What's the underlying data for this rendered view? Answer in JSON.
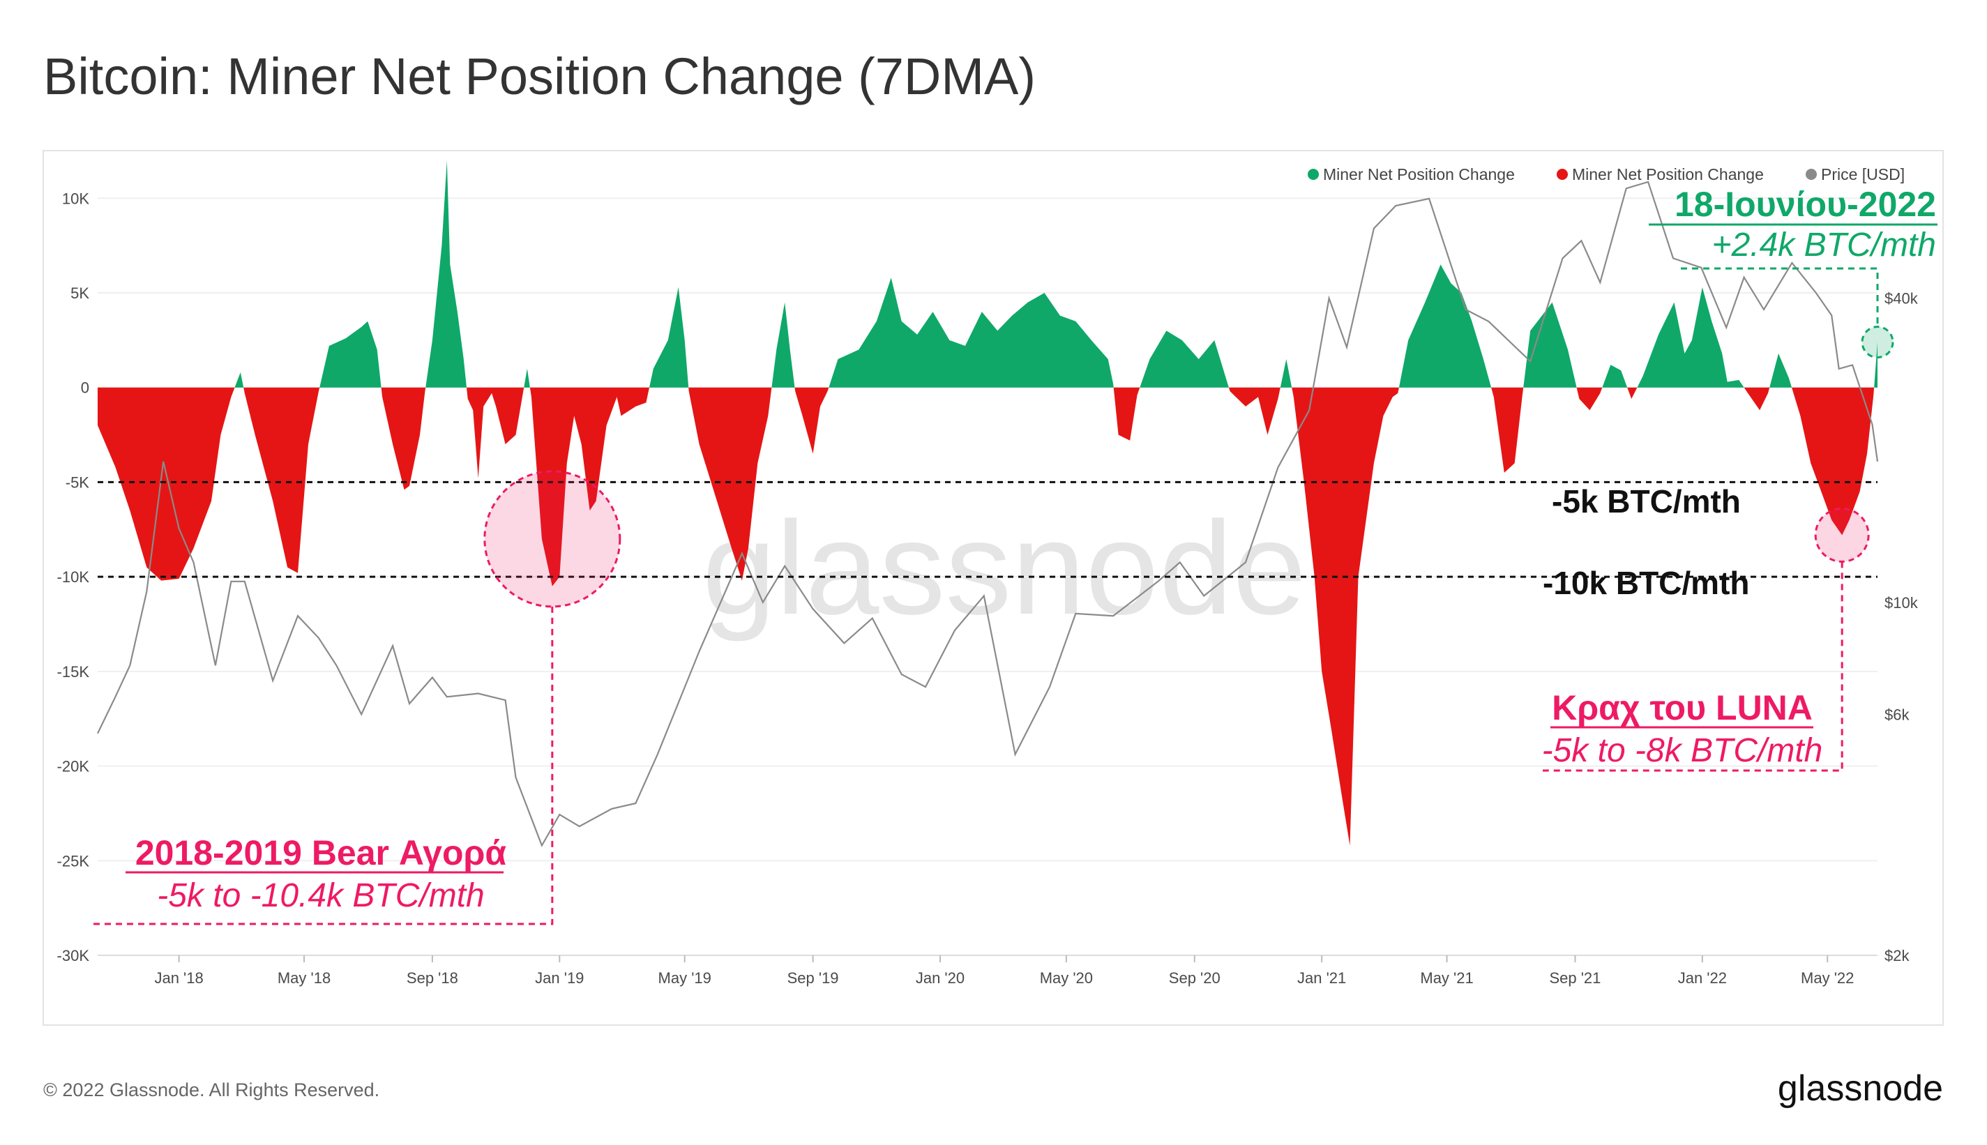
{
  "page": {
    "title": "Bitcoin: Miner Net Position Change (7DMA)"
  },
  "footer": {
    "copyright": "© 2022 Glassnode. All Rights Reserved.",
    "brand": "glassnode"
  },
  "watermark": "glassnode",
  "legend": [
    {
      "label": "Miner Net Position Change",
      "color": "#0fa869"
    },
    {
      "label": "Miner Net Position Change",
      "color": "#e51515"
    },
    {
      "label": "Price [USD]",
      "color": "#8a8a8a"
    }
  ],
  "annotations": {
    "peak_date": "18-Ιουνίου-2022",
    "peak_value": "+2.4k BTC/mth",
    "line_5k": "-5k BTC/mth",
    "line_10k": "-10k BTC/mth",
    "luna_title": "Κραχ του LUNA",
    "luna_range": "-5k to -8k BTC/mth",
    "bear_title": "2018-2019 Bear Αγορά",
    "bear_range": "-5k to -10.4k BTC/mth"
  },
  "colors": {
    "green": "#0fa869",
    "red": "#e51515",
    "pink": "#ee1a64",
    "price": "#8a8a8a"
  },
  "chart_data": {
    "type": "area",
    "title": "Bitcoin: Miner Net Position Change (7DMA)",
    "y_left": {
      "ylim": [
        -30000,
        12000
      ],
      "ticks": [
        10000,
        5000,
        0,
        -5000,
        -10000,
        -15000,
        -20000,
        -25000,
        -30000
      ],
      "tick_labels": [
        "10K",
        "5K",
        "0",
        "-5K",
        "-10K",
        "-15K",
        "-20K",
        "-25K",
        "-30K"
      ]
    },
    "y_right": {
      "scale": "log",
      "ticks": [
        40000,
        10000,
        6000,
        2000
      ],
      "tick_labels": [
        "$40k",
        "$10k",
        "$6k",
        "$2k"
      ]
    },
    "x_range": [
      "2017-10-15",
      "2022-06-18"
    ],
    "x_ticks": [
      {
        "date": "2018-01-01",
        "label": "Jan '18"
      },
      {
        "date": "2018-05-01",
        "label": "May '18"
      },
      {
        "date": "2018-09-01",
        "label": "Sep '18"
      },
      {
        "date": "2019-01-01",
        "label": "Jan '19"
      },
      {
        "date": "2019-05-01",
        "label": "May '19"
      },
      {
        "date": "2019-09-01",
        "label": "Sep '19"
      },
      {
        "date": "2020-01-01",
        "label": "Jan '20"
      },
      {
        "date": "2020-05-01",
        "label": "May '20"
      },
      {
        "date": "2020-09-01",
        "label": "Sep '20"
      },
      {
        "date": "2021-01-01",
        "label": "Jan '21"
      },
      {
        "date": "2021-05-01",
        "label": "May '21"
      },
      {
        "date": "2021-09-01",
        "label": "Sep '21"
      },
      {
        "date": "2022-01-01",
        "label": "Jan '22"
      },
      {
        "date": "2022-05-01",
        "label": "May '22"
      }
    ],
    "reference_lines": [
      -5000,
      -10000
    ],
    "series": [
      {
        "name": "Miner Net Position Change",
        "unit": "BTC",
        "points": [
          [
            "2017-10-15",
            -2000
          ],
          [
            "2017-11-01",
            -4200
          ],
          [
            "2017-11-15",
            -6500
          ],
          [
            "2017-12-01",
            -9500
          ],
          [
            "2017-12-15",
            -10200
          ],
          [
            "2018-01-01",
            -10100
          ],
          [
            "2018-01-15",
            -8500
          ],
          [
            "2018-02-01",
            -6000
          ],
          [
            "2018-02-10",
            -2500
          ],
          [
            "2018-02-20",
            -500
          ],
          [
            "2018-03-01",
            800
          ],
          [
            "2018-03-05",
            -300
          ],
          [
            "2018-03-15",
            -2500
          ],
          [
            "2018-04-01",
            -6000
          ],
          [
            "2018-04-15",
            -9500
          ],
          [
            "2018-04-25",
            -9800
          ],
          [
            "2018-05-05",
            -3000
          ],
          [
            "2018-05-15",
            -200
          ],
          [
            "2018-05-25",
            2200
          ],
          [
            "2018-06-10",
            2600
          ],
          [
            "2018-06-25",
            3200
          ],
          [
            "2018-07-01",
            3500
          ],
          [
            "2018-07-10",
            2000
          ],
          [
            "2018-07-15",
            -500
          ],
          [
            "2018-07-25",
            -3000
          ],
          [
            "2018-08-05",
            -5400
          ],
          [
            "2018-08-10",
            -5200
          ],
          [
            "2018-08-20",
            -2500
          ],
          [
            "2018-08-25",
            -200
          ],
          [
            "2018-09-01",
            2500
          ],
          [
            "2018-09-10",
            7500
          ],
          [
            "2018-09-15",
            12000
          ],
          [
            "2018-09-18",
            6500
          ],
          [
            "2018-09-25",
            4000
          ],
          [
            "2018-10-01",
            1500
          ],
          [
            "2018-10-05",
            -600
          ],
          [
            "2018-10-10",
            -1200
          ],
          [
            "2018-10-15",
            -4800
          ],
          [
            "2018-10-20",
            -1000
          ],
          [
            "2018-10-28",
            -300
          ],
          [
            "2018-11-01",
            -1000
          ],
          [
            "2018-11-10",
            -3000
          ],
          [
            "2018-11-20",
            -2500
          ],
          [
            "2018-12-01",
            1000
          ],
          [
            "2018-12-05",
            -500
          ],
          [
            "2018-12-15",
            -8000
          ],
          [
            "2018-12-25",
            -10500
          ],
          [
            "2019-01-01",
            -10000
          ],
          [
            "2019-01-08",
            -4000
          ],
          [
            "2019-01-15",
            -1500
          ],
          [
            "2019-01-22",
            -3000
          ],
          [
            "2019-01-30",
            -6500
          ],
          [
            "2019-02-05",
            -6000
          ],
          [
            "2019-02-15",
            -2000
          ],
          [
            "2019-02-25",
            -500
          ],
          [
            "2019-03-01",
            -1500
          ],
          [
            "2019-03-15",
            -1000
          ],
          [
            "2019-03-25",
            -800
          ],
          [
            "2019-04-01",
            1000
          ],
          [
            "2019-04-15",
            2500
          ],
          [
            "2019-04-25",
            5300
          ],
          [
            "2019-05-01",
            2500
          ],
          [
            "2019-05-05",
            -200
          ],
          [
            "2019-05-15",
            -3000
          ],
          [
            "2019-06-01",
            -6000
          ],
          [
            "2019-06-15",
            -8500
          ],
          [
            "2019-06-25",
            -10200
          ],
          [
            "2019-07-01",
            -8500
          ],
          [
            "2019-07-10",
            -4000
          ],
          [
            "2019-07-20",
            -1500
          ],
          [
            "2019-07-28",
            2000
          ],
          [
            "2019-08-05",
            4500
          ],
          [
            "2019-08-10",
            2000
          ],
          [
            "2019-08-15",
            -200
          ],
          [
            "2019-08-22",
            -1500
          ],
          [
            "2019-09-01",
            -3500
          ],
          [
            "2019-09-08",
            -1000
          ],
          [
            "2019-09-15",
            -200
          ],
          [
            "2019-09-25",
            1500
          ],
          [
            "2019-10-15",
            2000
          ],
          [
            "2019-11-01",
            3500
          ],
          [
            "2019-11-15",
            5800
          ],
          [
            "2019-11-25",
            3500
          ],
          [
            "2019-12-10",
            2800
          ],
          [
            "2019-12-25",
            4000
          ],
          [
            "2020-01-10",
            2500
          ],
          [
            "2020-01-25",
            2200
          ],
          [
            "2020-02-10",
            4000
          ],
          [
            "2020-02-25",
            3000
          ],
          [
            "2020-03-10",
            3800
          ],
          [
            "2020-03-25",
            4500
          ],
          [
            "2020-04-10",
            5000
          ],
          [
            "2020-04-25",
            3800
          ],
          [
            "2020-05-10",
            3500
          ],
          [
            "2020-05-25",
            2500
          ],
          [
            "2020-06-10",
            1500
          ],
          [
            "2020-06-15",
            200
          ],
          [
            "2020-06-20",
            -2500
          ],
          [
            "2020-07-01",
            -2800
          ],
          [
            "2020-07-08",
            -400
          ],
          [
            "2020-07-20",
            1500
          ],
          [
            "2020-08-05",
            3000
          ],
          [
            "2020-08-20",
            2500
          ],
          [
            "2020-09-05",
            1500
          ],
          [
            "2020-09-20",
            2500
          ],
          [
            "2020-10-05",
            -200
          ],
          [
            "2020-10-20",
            -1000
          ],
          [
            "2020-11-01",
            -500
          ],
          [
            "2020-11-10",
            -2500
          ],
          [
            "2020-11-20",
            -600
          ],
          [
            "2020-11-28",
            1500
          ],
          [
            "2020-12-05",
            -500
          ],
          [
            "2020-12-15",
            -5000
          ],
          [
            "2020-12-25",
            -10000
          ],
          [
            "2021-01-01",
            -15000
          ],
          [
            "2021-01-10",
            -18000
          ],
          [
            "2021-01-20",
            -21500
          ],
          [
            "2021-01-28",
            -24200
          ],
          [
            "2021-02-05",
            -10000
          ],
          [
            "2021-02-15",
            -6000
          ],
          [
            "2021-02-20",
            -4000
          ],
          [
            "2021-03-01",
            -1500
          ],
          [
            "2021-03-10",
            -500
          ],
          [
            "2021-03-15",
            -300
          ],
          [
            "2021-03-25",
            2500
          ],
          [
            "2021-04-10",
            4500
          ],
          [
            "2021-04-25",
            6500
          ],
          [
            "2021-05-05",
            5500
          ],
          [
            "2021-05-15",
            5000
          ],
          [
            "2021-05-25",
            3500
          ],
          [
            "2021-06-05",
            1500
          ],
          [
            "2021-06-15",
            -500
          ],
          [
            "2021-06-25",
            -4500
          ],
          [
            "2021-07-05",
            -4000
          ],
          [
            "2021-07-12",
            -600
          ],
          [
            "2021-07-20",
            3000
          ],
          [
            "2021-08-10",
            4500
          ],
          [
            "2021-08-25",
            2000
          ],
          [
            "2021-09-05",
            -600
          ],
          [
            "2021-09-15",
            -1200
          ],
          [
            "2021-09-25",
            -300
          ],
          [
            "2021-10-05",
            1200
          ],
          [
            "2021-10-15",
            900
          ],
          [
            "2021-10-25",
            -600
          ],
          [
            "2021-11-05",
            600
          ],
          [
            "2021-11-20",
            2800
          ],
          [
            "2021-12-05",
            4500
          ],
          [
            "2021-12-15",
            1800
          ],
          [
            "2021-12-22",
            2500
          ],
          [
            "2022-01-01",
            5300
          ],
          [
            "2022-01-10",
            3500
          ],
          [
            "2022-01-20",
            1800
          ],
          [
            "2022-01-25",
            300
          ],
          [
            "2022-02-05",
            400
          ],
          [
            "2022-02-15",
            -400
          ],
          [
            "2022-02-25",
            -1200
          ],
          [
            "2022-03-05",
            -300
          ],
          [
            "2022-03-15",
            1800
          ],
          [
            "2022-03-25",
            500
          ],
          [
            "2022-04-05",
            -1500
          ],
          [
            "2022-04-15",
            -4000
          ],
          [
            "2022-04-25",
            -5500
          ],
          [
            "2022-05-05",
            -7000
          ],
          [
            "2022-05-15",
            -7800
          ],
          [
            "2022-05-22",
            -7000
          ],
          [
            "2022-06-01",
            -5500
          ],
          [
            "2022-06-08",
            -3500
          ],
          [
            "2022-06-14",
            -500
          ],
          [
            "2022-06-18",
            2400
          ]
        ]
      },
      {
        "name": "Price [USD]",
        "unit": "USD",
        "points": [
          [
            "2017-10-15",
            5500
          ],
          [
            "2017-11-01",
            6500
          ],
          [
            "2017-11-15",
            7500
          ],
          [
            "2017-12-01",
            10500
          ],
          [
            "2017-12-17",
            19000
          ],
          [
            "2018-01-01",
            14000
          ],
          [
            "2018-01-15",
            12000
          ],
          [
            "2018-02-05",
            7500
          ],
          [
            "2018-02-20",
            11000
          ],
          [
            "2018-03-05",
            11000
          ],
          [
            "2018-04-01",
            7000
          ],
          [
            "2018-04-25",
            9400
          ],
          [
            "2018-05-15",
            8500
          ],
          [
            "2018-06-01",
            7500
          ],
          [
            "2018-06-25",
            6000
          ],
          [
            "2018-07-25",
            8200
          ],
          [
            "2018-08-10",
            6300
          ],
          [
            "2018-09-01",
            7100
          ],
          [
            "2018-09-15",
            6500
          ],
          [
            "2018-10-15",
            6600
          ],
          [
            "2018-11-10",
            6400
          ],
          [
            "2018-11-20",
            4500
          ],
          [
            "2018-12-15",
            3300
          ],
          [
            "2019-01-01",
            3800
          ],
          [
            "2019-01-20",
            3600
          ],
          [
            "2019-02-20",
            3900
          ],
          [
            "2019-03-15",
            4000
          ],
          [
            "2019-04-05",
            5000
          ],
          [
            "2019-05-15",
            8000
          ],
          [
            "2019-06-25",
            12500
          ],
          [
            "2019-07-15",
            10000
          ],
          [
            "2019-08-05",
            11800
          ],
          [
            "2019-09-01",
            9700
          ],
          [
            "2019-10-01",
            8300
          ],
          [
            "2019-10-28",
            9300
          ],
          [
            "2019-11-25",
            7200
          ],
          [
            "2019-12-18",
            6800
          ],
          [
            "2020-01-15",
            8800
          ],
          [
            "2020-02-12",
            10300
          ],
          [
            "2020-03-13",
            5000
          ],
          [
            "2020-04-15",
            6800
          ],
          [
            "2020-05-10",
            9500
          ],
          [
            "2020-06-15",
            9400
          ],
          [
            "2020-07-28",
            11000
          ],
          [
            "2020-08-18",
            12000
          ],
          [
            "2020-09-10",
            10300
          ],
          [
            "2020-10-20",
            12000
          ],
          [
            "2020-11-20",
            18500
          ],
          [
            "2020-12-20",
            24000
          ],
          [
            "2021-01-08",
            40000
          ],
          [
            "2021-01-25",
            32000
          ],
          [
            "2021-02-20",
            55000
          ],
          [
            "2021-03-13",
            61000
          ],
          [
            "2021-04-14",
            63000
          ],
          [
            "2021-05-19",
            38000
          ],
          [
            "2021-06-10",
            36000
          ],
          [
            "2021-07-20",
            30000
          ],
          [
            "2021-08-20",
            48000
          ],
          [
            "2021-09-07",
            52000
          ],
          [
            "2021-09-25",
            43000
          ],
          [
            "2021-10-20",
            66000
          ],
          [
            "2021-11-10",
            68000
          ],
          [
            "2021-12-04",
            48000
          ],
          [
            "2021-12-31",
            46000
          ],
          [
            "2022-01-24",
            35000
          ],
          [
            "2022-02-10",
            44000
          ],
          [
            "2022-03-01",
            38000
          ],
          [
            "2022-03-28",
            47000
          ],
          [
            "2022-04-20",
            41000
          ],
          [
            "2022-05-05",
            37000
          ],
          [
            "2022-05-12",
            29000
          ],
          [
            "2022-05-25",
            29500
          ],
          [
            "2022-06-13",
            22500
          ],
          [
            "2022-06-18",
            19000
          ]
        ]
      }
    ]
  }
}
